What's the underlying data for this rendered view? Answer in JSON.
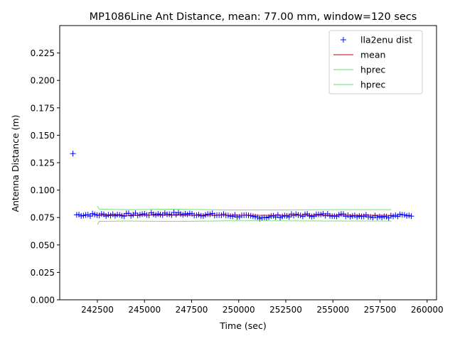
{
  "chart_data": {
    "type": "scatter",
    "title": "MP1086Line Ant Distance, mean: 77.00 mm, window=120 secs",
    "xlabel": "Time (sec)",
    "ylabel": "Antenna Distance (m)",
    "xlim": [
      240500,
      260500
    ],
    "ylim": [
      0.0,
      0.25
    ],
    "xticks": [
      242500,
      245000,
      247500,
      250000,
      252500,
      255000,
      257500,
      260000
    ],
    "xtick_labels": [
      "242500",
      "245000",
      "247500",
      "250000",
      "252500",
      "255000",
      "257500",
      "260000"
    ],
    "yticks": [
      0.0,
      0.025,
      0.05,
      0.075,
      0.1,
      0.125,
      0.15,
      0.175,
      0.2,
      0.225
    ],
    "ytick_labels": [
      "0.000",
      "0.025",
      "0.050",
      "0.075",
      "0.100",
      "0.125",
      "0.150",
      "0.175",
      "0.200",
      "0.225"
    ],
    "grid": false,
    "legend_position": "top-right",
    "series": [
      {
        "name": "lla2enu dist",
        "marker": "+",
        "color": "#0000ff",
        "outlier": {
          "x": 241200,
          "y": 0.1333
        },
        "x_start": 241400,
        "x_end": 259200,
        "x_step": 120,
        "y_center": 0.0772,
        "y_segments": [
          {
            "x": 241400,
            "y": 0.0775
          },
          {
            "x": 244000,
            "y": 0.0775
          },
          {
            "x": 246500,
            "y": 0.0785
          },
          {
            "x": 249500,
            "y": 0.077
          },
          {
            "x": 251000,
            "y": 0.0752
          },
          {
            "x": 253000,
            "y": 0.077
          },
          {
            "x": 255000,
            "y": 0.0775
          },
          {
            "x": 258000,
            "y": 0.076
          },
          {
            "x": 259200,
            "y": 0.0775
          }
        ]
      },
      {
        "name": "mean",
        "color": "#cc0000",
        "x": [
          242500,
          258100
        ],
        "y": [
          0.077,
          0.077
        ]
      },
      {
        "name": "hprec",
        "color": "#66dd66",
        "x": [
          242500,
          242600,
          244000,
          246500,
          249500,
          252000,
          255000,
          258100
        ],
        "y": [
          0.0855,
          0.0825,
          0.0822,
          0.0825,
          0.082,
          0.082,
          0.0822,
          0.0822
        ]
      },
      {
        "name": "hprec",
        "color": "#66dd66",
        "x": [
          242500,
          242600,
          244000,
          246500,
          249500,
          252000,
          255000,
          258100
        ],
        "y": [
          0.0685,
          0.0715,
          0.0718,
          0.0715,
          0.072,
          0.072,
          0.0718,
          0.0718
        ]
      }
    ]
  }
}
